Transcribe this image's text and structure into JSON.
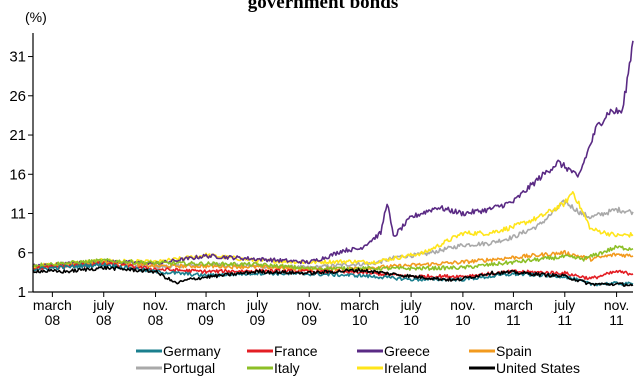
{
  "chart_data": {
    "type": "line",
    "title": "government bonds",
    "unit_label": "(%)",
    "ylim": [
      1,
      34
    ],
    "yticks": [
      1,
      6,
      11,
      16,
      21,
      26,
      31
    ],
    "xlim": [
      "2008-01-15",
      "2011-12-10"
    ],
    "xticks": [
      {
        "date": "2008-03-01",
        "label": [
          "march",
          "08"
        ]
      },
      {
        "date": "2008-07-01",
        "label": [
          "july",
          "08"
        ]
      },
      {
        "date": "2008-11-01",
        "label": [
          "nov.",
          "08"
        ]
      },
      {
        "date": "2009-03-01",
        "label": [
          "march",
          "09"
        ]
      },
      {
        "date": "2009-07-01",
        "label": [
          "july",
          "09"
        ]
      },
      {
        "date": "2009-11-01",
        "label": [
          "nov.",
          "09"
        ]
      },
      {
        "date": "2010-03-01",
        "label": [
          "march",
          "10"
        ]
      },
      {
        "date": "2010-07-01",
        "label": [
          "july",
          "10"
        ]
      },
      {
        "date": "2010-11-01",
        "label": [
          "nov.",
          "10"
        ]
      },
      {
        "date": "2011-03-01",
        "label": [
          "march",
          "11"
        ]
      },
      {
        "date": "2011-07-01",
        "label": [
          "july",
          "11"
        ]
      },
      {
        "date": "2011-11-01",
        "label": [
          "nov.",
          "11"
        ]
      }
    ],
    "grid": false,
    "legend_position": "bottom",
    "series": [
      {
        "name": "Portugal",
        "color": "#a9a9a9",
        "x": [
          "2008-01-15",
          "2008-07-01",
          "2008-11-01",
          "2009-03-01",
          "2009-07-01",
          "2009-11-01",
          "2010-02-01",
          "2010-04-01",
          "2010-06-01",
          "2010-08-01",
          "2010-11-01",
          "2011-01-01",
          "2011-03-01",
          "2011-05-01",
          "2011-07-01",
          "2011-08-10",
          "2011-09-01",
          "2011-11-01",
          "2011-12-10"
        ],
        "y": [
          4.1,
          4.8,
          4.2,
          4.5,
          4.3,
          4.1,
          4.5,
          4.6,
          5.5,
          5.8,
          7.0,
          7.2,
          8.0,
          9.5,
          12.5,
          11.0,
          10.5,
          11.5,
          11.2
        ]
      },
      {
        "name": "Ireland",
        "color": "#ffe51a",
        "x": [
          "2008-01-15",
          "2008-07-01",
          "2008-11-01",
          "2009-03-01",
          "2009-07-01",
          "2009-11-01",
          "2010-02-01",
          "2010-04-01",
          "2010-06-01",
          "2010-08-01",
          "2010-11-01",
          "2011-01-01",
          "2011-03-01",
          "2011-05-01",
          "2011-07-01",
          "2011-07-20",
          "2011-09-01",
          "2011-11-01",
          "2011-12-10"
        ],
        "y": [
          4.3,
          5.0,
          4.8,
          5.7,
          5.0,
          4.8,
          4.9,
          4.8,
          5.4,
          6.0,
          8.5,
          8.5,
          9.3,
          10.5,
          12.3,
          13.8,
          9.0,
          8.2,
          8.3
        ]
      },
      {
        "name": "Greece",
        "color": "#5a2a84",
        "x": [
          "2008-01-15",
          "2008-07-01",
          "2008-11-01",
          "2009-03-01",
          "2009-07-01",
          "2009-11-01",
          "2009-12-15",
          "2010-01-20",
          "2010-03-01",
          "2010-04-20",
          "2010-05-05",
          "2010-05-20",
          "2010-07-01",
          "2010-09-01",
          "2010-11-01",
          "2011-01-01",
          "2011-03-01",
          "2011-05-01",
          "2011-06-15",
          "2011-07-15",
          "2011-08-01",
          "2011-09-15",
          "2011-10-15",
          "2011-11-15",
          "2011-12-10"
        ],
        "y": [
          4.3,
          4.9,
          4.6,
          5.6,
          5.2,
          4.8,
          5.5,
          6.3,
          6.5,
          8.5,
          12.5,
          8.0,
          10.5,
          11.8,
          11.0,
          11.5,
          12.5,
          15.5,
          17.5,
          16.5,
          15.5,
          22.0,
          24.0,
          24.0,
          33.0
        ]
      },
      {
        "name": "Spain",
        "color": "#f29a1e",
        "x": [
          "2008-01-15",
          "2008-07-01",
          "2008-11-01",
          "2009-03-01",
          "2009-07-01",
          "2009-11-01",
          "2010-03-01",
          "2010-07-01",
          "2010-11-01",
          "2011-03-01",
          "2011-07-01",
          "2011-09-01",
          "2011-11-01",
          "2011-12-10"
        ],
        "y": [
          4.1,
          4.8,
          4.3,
          4.3,
          4.2,
          3.9,
          4.0,
          4.4,
          4.8,
          5.4,
          6.0,
          5.2,
          5.8,
          5.6
        ]
      },
      {
        "name": "Italy",
        "color": "#8cbf26",
        "x": [
          "2008-01-15",
          "2008-07-01",
          "2008-11-01",
          "2009-03-01",
          "2009-07-01",
          "2009-11-01",
          "2010-03-01",
          "2010-07-01",
          "2010-11-01",
          "2011-03-01",
          "2011-07-01",
          "2011-08-15",
          "2011-11-01",
          "2011-12-10"
        ],
        "y": [
          4.4,
          5.0,
          4.7,
          4.6,
          4.5,
          4.0,
          4.0,
          4.0,
          4.1,
          4.8,
          5.5,
          5.2,
          6.7,
          6.5
        ]
      },
      {
        "name": "France",
        "color": "#e31e24",
        "x": [
          "2008-01-15",
          "2008-07-01",
          "2008-11-01",
          "2009-03-01",
          "2009-07-01",
          "2009-11-01",
          "2010-03-01",
          "2010-07-01",
          "2010-11-01",
          "2011-03-01",
          "2011-07-01",
          "2011-09-01",
          "2011-11-01",
          "2011-12-10"
        ],
        "y": [
          4.0,
          4.6,
          3.9,
          3.6,
          3.7,
          3.6,
          3.5,
          3.0,
          3.0,
          3.6,
          3.4,
          2.7,
          3.6,
          3.3
        ]
      },
      {
        "name": "Germany",
        "color": "#1a7f8e",
        "x": [
          "2008-01-15",
          "2008-07-01",
          "2008-11-01",
          "2009-03-01",
          "2009-07-01",
          "2009-11-01",
          "2010-03-01",
          "2010-07-01",
          "2010-11-01",
          "2011-03-01",
          "2011-07-01",
          "2011-09-01",
          "2011-11-01",
          "2011-12-10"
        ],
        "y": [
          3.9,
          4.5,
          3.6,
          3.1,
          3.4,
          3.3,
          3.1,
          2.6,
          2.6,
          3.3,
          3.0,
          2.0,
          2.1,
          2.0
        ]
      },
      {
        "name": "United States",
        "color": "#000000",
        "x": [
          "2008-01-15",
          "2008-04-01",
          "2008-07-01",
          "2008-11-01",
          "2008-12-20",
          "2009-01-20",
          "2009-03-01",
          "2009-07-01",
          "2009-11-01",
          "2010-03-01",
          "2010-07-01",
          "2010-10-15",
          "2011-01-01",
          "2011-03-01",
          "2011-07-01",
          "2011-09-01",
          "2011-11-01",
          "2011-12-10"
        ],
        "y": [
          3.7,
          3.6,
          4.1,
          3.6,
          2.1,
          2.6,
          2.9,
          3.6,
          3.4,
          3.8,
          3.0,
          2.5,
          3.4,
          3.5,
          3.0,
          2.0,
          2.0,
          1.9
        ]
      }
    ]
  }
}
